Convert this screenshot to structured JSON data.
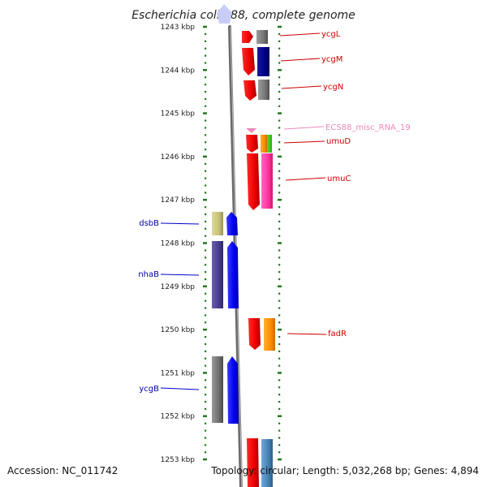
{
  "title": "Escherichia coli S88, complete genome",
  "footer": {
    "accession": "Accession: NC_011742",
    "topology": "Topology: circular; Length: 5,032,268 bp; Genes: 4,894"
  },
  "scale": {
    "unit": "kbp",
    "ticks": [
      "1243 kbp",
      "1244 kbp",
      "1245 kbp",
      "1246 kbp",
      "1247 kbp",
      "1248 kbp",
      "1249 kbp",
      "1250 kbp",
      "1251 kbp",
      "1252 kbp",
      "1253 kbp"
    ]
  },
  "features": [
    {
      "name": "ycgL",
      "strand": "forward",
      "color": "#dd0000"
    },
    {
      "name": "ycgM",
      "strand": "forward",
      "color": "#dd0000"
    },
    {
      "name": "ycgN",
      "strand": "forward",
      "color": "#dd0000"
    },
    {
      "name": "ECS88_misc_RNA_19",
      "strand": "forward",
      "color": "#ee88bb"
    },
    {
      "name": "umuD",
      "strand": "forward",
      "color": "#dd0000"
    },
    {
      "name": "umuC",
      "strand": "forward",
      "color": "#dd0000"
    },
    {
      "name": "dsbB",
      "strand": "reverse",
      "color": "#0000aa"
    },
    {
      "name": "nhaB",
      "strand": "reverse",
      "color": "#0000aa"
    },
    {
      "name": "fadR",
      "strand": "forward",
      "color": "#dd0000"
    },
    {
      "name": "ycgB",
      "strand": "reverse",
      "color": "#0000aa"
    }
  ],
  "colors": {
    "forward_gene": "#ee0000",
    "reverse_gene": "#0000ee",
    "tick_marks": "#227722",
    "backbone": "#777777"
  }
}
